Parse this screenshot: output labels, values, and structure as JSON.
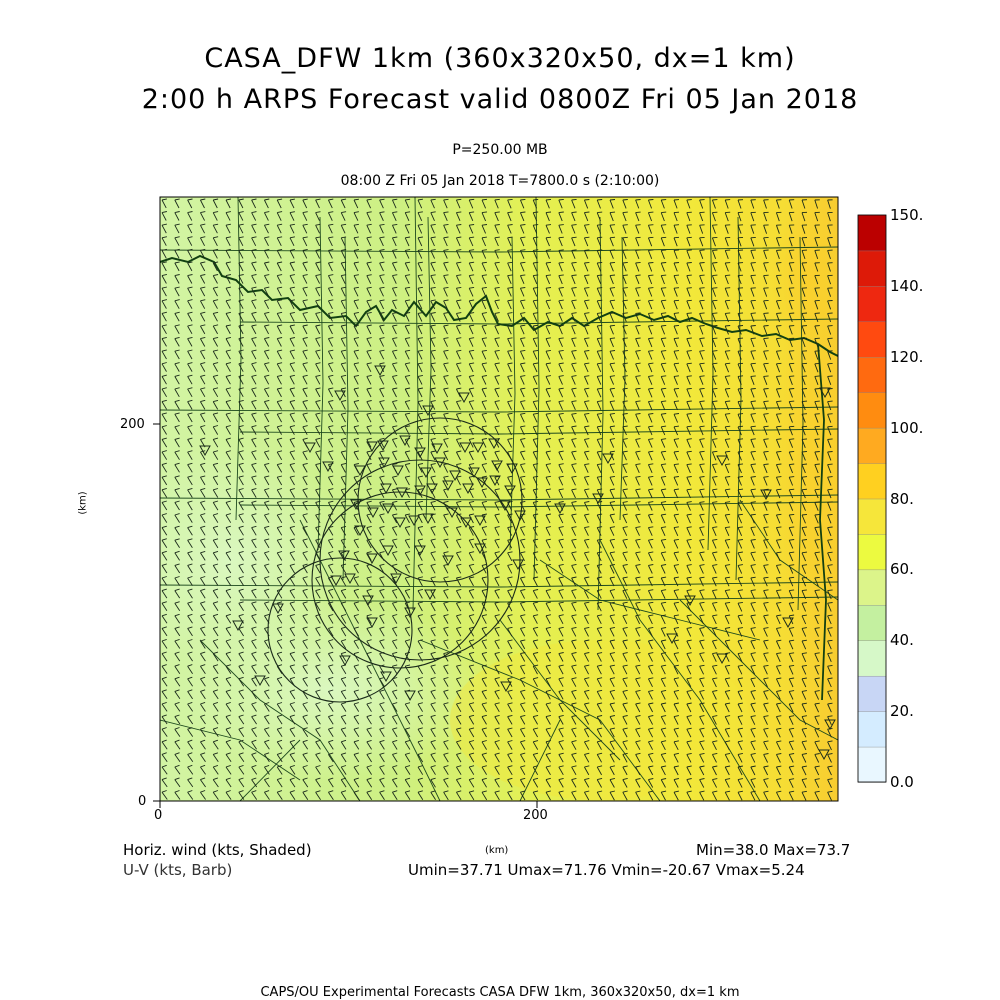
{
  "header": {
    "title_line1": "CASA_DFW 1km (360x320x50, dx=1 km)",
    "title_line2": "2:00 h ARPS Forecast valid 0800Z Fri 05 Jan 2018",
    "pressure": "P=250.00 MB",
    "time_line": "08:00 Z Fri 05 Jan 2018    T=7800.0 s (2:10:00)"
  },
  "axes": {
    "x_ticks": [
      "0",
      "200"
    ],
    "y_ticks": [
      "0",
      "200"
    ],
    "x_label": "(km)",
    "y_label": "(km)"
  },
  "colorbar": {
    "labels": [
      "0.0",
      "20.",
      "40.",
      "60.",
      "80.",
      "100.",
      "120.",
      "140.",
      "150."
    ],
    "colors": [
      "#e9f7ff",
      "#d4ecff",
      "#c8d6f5",
      "#d6f8c8",
      "#c4f0a0",
      "#dcf48a",
      "#ecfa40",
      "#f6e63a",
      "#ffd020",
      "#ffaa20",
      "#ff8c10",
      "#ff6a10",
      "#ff4a10",
      "#ee2810",
      "#dd1a08",
      "#bb0000"
    ]
  },
  "legend": {
    "shaded_label": "Horiz. wind (kts, Shaded)",
    "barb_label": "U-V (kts, Barb)",
    "minmax": "Min=38.0 Max=73.7",
    "uv_range": "Umin=37.71 Umax=71.76 Vmin=-20.67 Vmax=5.24"
  },
  "footer": {
    "credit": "CAPS/OU Experimental Forecasts  CASA DFW 1km, 360x320x50, dx=1 km"
  },
  "map": {
    "field_colors": {
      "low": "#d8f7b0",
      "mid": "#c9f07e",
      "high": "#e8f040",
      "peak": "#f6e034",
      "edge": "#f8c830"
    },
    "county_line_color": "#1e4a1e",
    "state_line_color": "#124012",
    "radar_ring_color": "#1a2a1a",
    "barb_color": "#1a2a1a"
  }
}
